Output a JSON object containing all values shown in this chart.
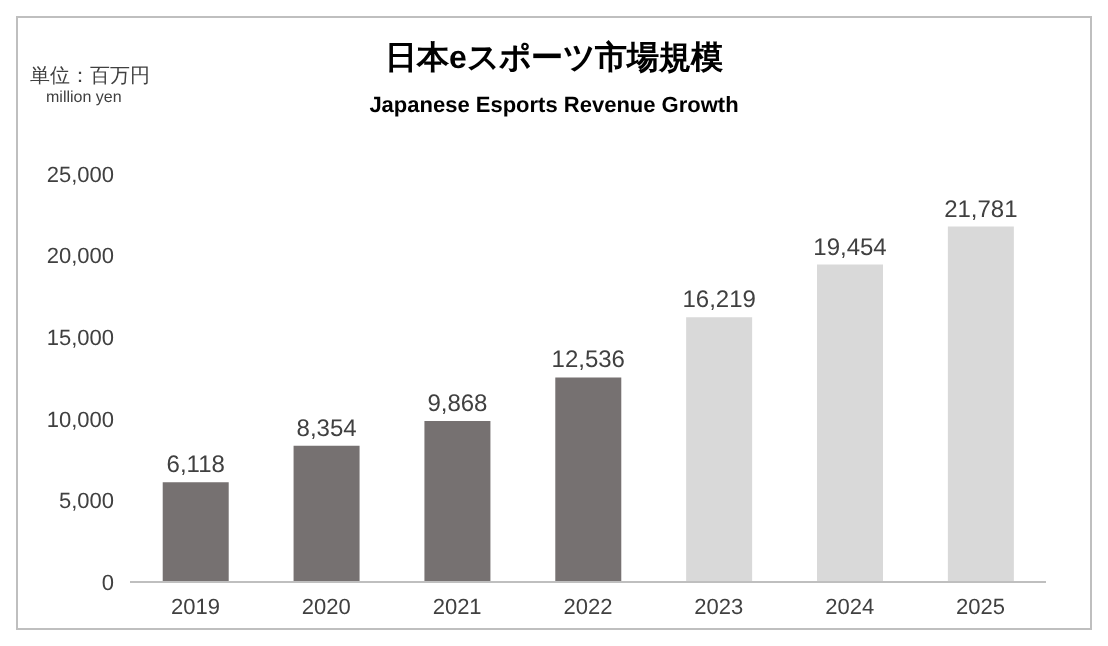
{
  "chart_data": {
    "type": "bar",
    "title": "日本eスポーツ市場規模",
    "subtitle": "Japanese Esports Revenue Growth",
    "ylabel": "単位：百万円",
    "annotations": [
      "million yen"
    ],
    "categories": [
      "2019",
      "2020",
      "2021",
      "2022",
      "2023",
      "2024",
      "2025"
    ],
    "values": [
      6118,
      8354,
      9868,
      12536,
      16219,
      19454,
      21781
    ],
    "value_labels": [
      "6,118",
      "8,354",
      "9,868",
      "12,536",
      "16,219",
      "19,454",
      "21,781"
    ],
    "colors": [
      "#767171",
      "#767171",
      "#767171",
      "#767171",
      "#d9d9d9",
      "#d9d9d9",
      "#d9d9d9"
    ],
    "ylim": [
      0,
      25000
    ],
    "yticks": [
      0,
      {
        "value": 5000,
        "label": "5,000"
      },
      {
        "value": 10000,
        "label": "10,000"
      },
      {
        "value": 15000,
        "label": "15,000"
      },
      {
        "value": 20000,
        "label": "20,000"
      },
      {
        "value": 25000,
        "label": "25,000"
      }
    ],
    "grid": false,
    "legend": false
  }
}
